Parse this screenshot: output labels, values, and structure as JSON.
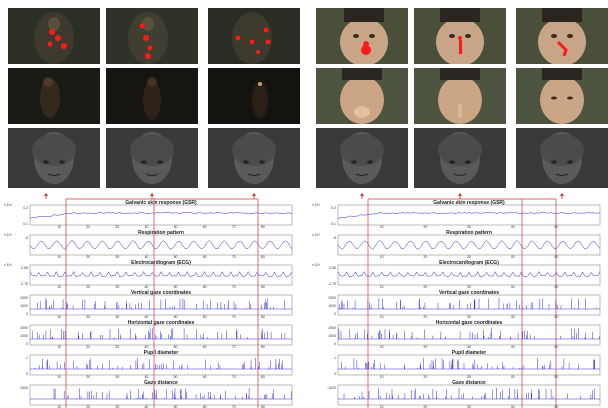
{
  "colors": {
    "marker": "#ff1a1a",
    "signal": "#2a2ad4",
    "connector": "#d83030",
    "eeg_bg": "#3a3a3a"
  },
  "left_panel": {
    "plot_titles": [
      "Galvanic skin response (GSR)",
      "Respiration pattern",
      "Electrocardiogram (ECG)",
      "Vertical gaze coordinates",
      "Horizontal gaze coordinates",
      "Pupil diameter",
      "Gaze distance"
    ],
    "x_ticks": [
      "10",
      "20",
      "30",
      "40",
      "50",
      "60",
      "70",
      "80"
    ],
    "y_ticks": [
      [
        "0.2",
        "0.1"
      ],
      [
        "-5"
      ],
      [
        "-2.65",
        "-2.75"
      ],
      [
        "2000",
        "1000",
        "0"
      ],
      [
        "2000",
        "1000",
        "0"
      ],
      [
        "1",
        "0"
      ],
      [
        "-1000"
      ]
    ],
    "sci_labels": [
      "x 10³",
      "x 10⁴",
      "x 10⁴"
    ]
  },
  "right_panel": {
    "plot_titles": [
      "Galvanic skin response (GSR)",
      "Respiration pattern",
      "Electrocardiogram (ECG)",
      "Vertical gaze coordinates",
      "Horizontal gaze coordinates",
      "Pupil diameter",
      "Gaze distance"
    ],
    "x_ticks": [
      "10",
      "20",
      "30",
      "40",
      "50"
    ],
    "y_ticks": [
      [
        "0.2",
        "0.1"
      ],
      [
        "-5"
      ],
      [
        "-2.65",
        "-2.75"
      ],
      [
        "2000",
        "1000",
        "0"
      ],
      [
        "2000",
        "1000",
        "0"
      ],
      [
        "1",
        "0"
      ],
      [
        "-1000"
      ]
    ],
    "sci_labels": [
      "x 10³",
      "x 10⁴",
      "x 10⁴"
    ]
  }
}
